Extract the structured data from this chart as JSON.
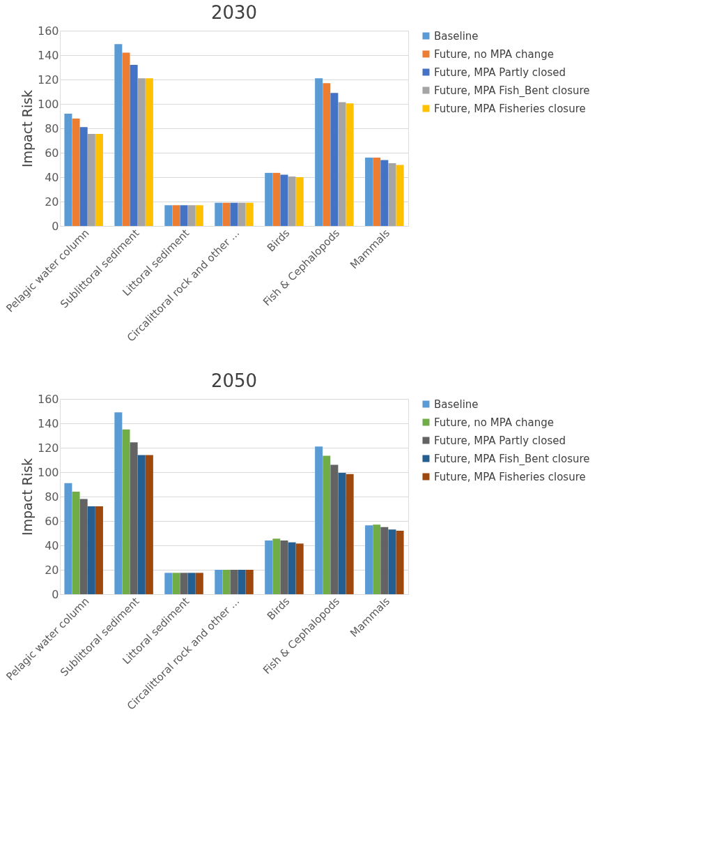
{
  "chart_data": [
    {
      "type": "bar",
      "title": "2030",
      "ylabel": "Impact Risk",
      "categories": [
        "Pelagic water column",
        "Sublittoral sediment",
        "Littoral sediment",
        "Circalittoral rock and other ...",
        "Birds",
        "Fish & Cephalopods",
        "Mammals"
      ],
      "series": [
        {
          "name": "Baseline",
          "color": "#5b9bd5",
          "values": [
            92,
            149,
            17,
            19,
            43.5,
            121,
            56
          ]
        },
        {
          "name": "Future, no MPA change",
          "color": "#ed7d31",
          "values": [
            88,
            142,
            17,
            19,
            43.5,
            117,
            56
          ]
        },
        {
          "name": "Future, MPA Partly closed",
          "color": "#4472c4",
          "values": [
            81,
            132,
            17,
            19,
            42,
            109,
            54
          ]
        },
        {
          "name": "Future, MPA Fish_Bent closure",
          "color": "#a5a5a5",
          "values": [
            75.5,
            121,
            17,
            19,
            40.5,
            101.5,
            51.5
          ]
        },
        {
          "name": "Future, MPA Fisheries closure",
          "color": "#ffc000",
          "values": [
            75.5,
            121,
            17,
            19,
            40,
            100.5,
            50
          ]
        }
      ],
      "ylim": [
        0,
        160
      ],
      "yticks": [
        0,
        20,
        40,
        60,
        80,
        100,
        120,
        140,
        160
      ],
      "grid": "y",
      "legend": "right"
    },
    {
      "type": "bar",
      "title": "2050",
      "ylabel": "Impact Risk",
      "categories": [
        "Pelagic water column",
        "Sublittoral sediment",
        "Littoral sediment",
        "Circalittoral rock and other ...",
        "Birds",
        "Fish & Cephalopods",
        "Mammals"
      ],
      "series": [
        {
          "name": "Baseline",
          "color": "#5b9bd5",
          "values": [
            91,
            149,
            17.5,
            20,
            44,
            121,
            56.5
          ]
        },
        {
          "name": "Future, no MPA change",
          "color": "#70ad47",
          "values": [
            84,
            135,
            17.5,
            20,
            45.5,
            113.5,
            57
          ]
        },
        {
          "name": "Future, MPA Partly closed",
          "color": "#636363",
          "values": [
            78,
            124.5,
            17.5,
            20,
            44,
            106,
            55
          ]
        },
        {
          "name": "Future, MPA Fish_Bent closure",
          "color": "#255e91",
          "values": [
            72,
            114,
            17.5,
            20,
            42.5,
            99.5,
            53
          ]
        },
        {
          "name": "Future, MPA Fisheries closure",
          "color": "#9e480e",
          "values": [
            72,
            114,
            17.5,
            20,
            41.5,
            98.5,
            52
          ]
        }
      ],
      "ylim": [
        0,
        160
      ],
      "yticks": [
        0,
        20,
        40,
        60,
        80,
        100,
        120,
        140,
        160
      ],
      "grid": "y",
      "legend": "right"
    }
  ]
}
